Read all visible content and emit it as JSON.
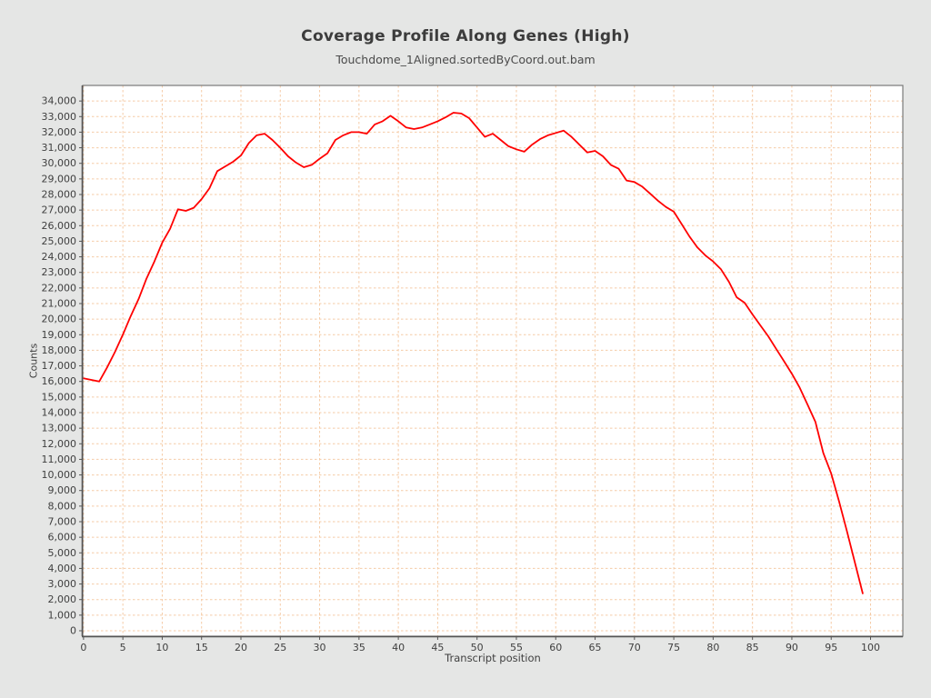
{
  "title": "Coverage Profile Along Genes (High)",
  "subtitle": "Touchdome_1Aligned.sortedByCoord.out.bam",
  "chart_data": {
    "type": "line",
    "title": "Coverage Profile Along Genes (High)",
    "subtitle": "Touchdome_1Aligned.sortedByCoord.out.bam",
    "xlabel": "Transcript position",
    "ylabel": "Counts",
    "xlim": [
      0,
      100
    ],
    "ylim": [
      0,
      34000
    ],
    "x_tick_interval": 5,
    "y_tick_interval": 1000,
    "axis_range": {
      "x": [
        -0.1,
        104.1
      ],
      "y": [
        -350,
        35000
      ]
    },
    "grid": "dashed",
    "legend": "none",
    "colors": {
      "background": "#e5e6e5",
      "plot_background": "#ffffff",
      "gridline": "#f5cba6",
      "frame": "#7a7a7a",
      "axis_line": "#555555",
      "tick_text": "#3f3f3f",
      "series": "#ff0000"
    },
    "series": [
      {
        "name": "coverage",
        "color": "#ff0000",
        "x": [
          0,
          1,
          2,
          3,
          4,
          5,
          6,
          7,
          8,
          9,
          10,
          11,
          12,
          13,
          14,
          15,
          16,
          17,
          18,
          19,
          20,
          21,
          22,
          23,
          24,
          25,
          26,
          27,
          28,
          29,
          30,
          31,
          32,
          33,
          34,
          35,
          36,
          37,
          38,
          39,
          40,
          41,
          42,
          43,
          44,
          45,
          46,
          47,
          48,
          49,
          50,
          51,
          52,
          53,
          54,
          55,
          56,
          57,
          58,
          59,
          60,
          61,
          62,
          63,
          64,
          65,
          66,
          67,
          68,
          69,
          70,
          71,
          72,
          73,
          74,
          75,
          76,
          77,
          78,
          79,
          80,
          81,
          82,
          83,
          84,
          85,
          86,
          87,
          88,
          89,
          90,
          91,
          92,
          93,
          94,
          95,
          96,
          97,
          98,
          99
        ],
        "values": [
          16200,
          16100,
          16000,
          16900,
          17900,
          19000,
          20200,
          21300,
          22600,
          23700,
          24900,
          25800,
          27050,
          26950,
          27150,
          27700,
          28400,
          29500,
          29800,
          30100,
          30500,
          31300,
          31800,
          31900,
          31500,
          31000,
          30450,
          30050,
          29750,
          29900,
          30300,
          30650,
          31500,
          31800,
          32000,
          32000,
          31900,
          32500,
          32700,
          33050,
          32700,
          32300,
          32200,
          32300,
          32500,
          32700,
          32950,
          33250,
          33200,
          32900,
          32300,
          31700,
          31900,
          31500,
          31100,
          30900,
          30750,
          31200,
          31550,
          31800,
          31950,
          32100,
          31700,
          31200,
          30700,
          30800,
          30450,
          29900,
          29650,
          28900,
          28800,
          28500,
          28050,
          27600,
          27200,
          26900,
          26100,
          25300,
          24600,
          24100,
          23700,
          23200,
          22400,
          21400,
          21050,
          20300,
          19600,
          18900,
          18100,
          17300,
          16500,
          15600,
          14500,
          13400,
          11400,
          10100,
          8300,
          6400,
          4400,
          2400
        ]
      }
    ]
  }
}
